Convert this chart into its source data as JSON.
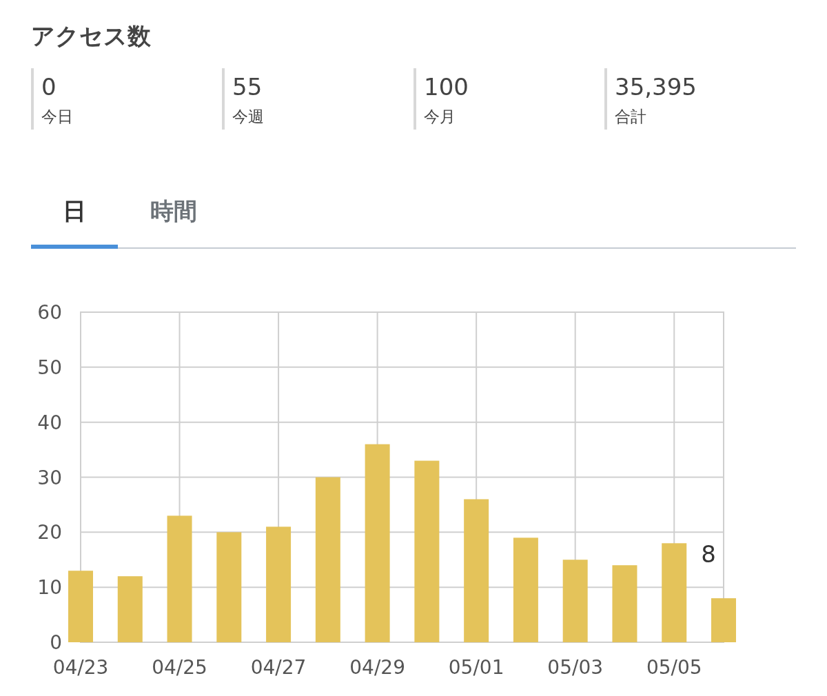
{
  "chart_data": [
    {
      "type": "other",
      "title": "アクセス数",
      "annotations": [
        "0",
        "今日",
        "55",
        "今週",
        "100",
        "今月",
        "35,395",
        "合計",
        "日",
        "時間"
      ]
    },
    {
      "type": "bar",
      "categories": [
        "04/23",
        null,
        "04/25",
        null,
        "04/27",
        null,
        "04/29",
        null,
        "05/01",
        null,
        "05/03",
        null,
        "05/05",
        null
      ],
      "values": [
        13,
        12,
        23,
        20,
        21,
        30,
        36,
        33,
        26,
        19,
        15,
        14,
        18,
        8
      ],
      "value_labels": [
        null,
        null,
        null,
        null,
        null,
        null,
        null,
        null,
        null,
        null,
        null,
        null,
        null,
        "8"
      ],
      "color": "#e4c35a",
      "ylim": [
        0,
        60
      ],
      "yticks": [
        0,
        10,
        20,
        30,
        40,
        50,
        60
      ],
      "grid": true
    }
  ]
}
